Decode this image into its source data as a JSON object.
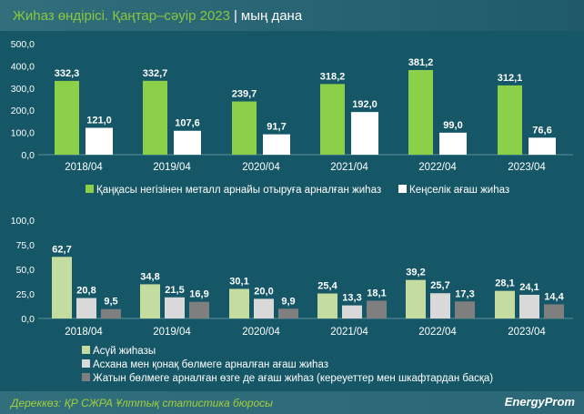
{
  "header": {
    "title": "Жиһаз өндірісі. Қаңтар–сәуір 2023",
    "separator": "|",
    "unit": "мың дана"
  },
  "footer": {
    "source": "Дереккөз: ҚР СЖРА Ұлттық статистика бюросы",
    "logo": "EnergyProm"
  },
  "colors": {
    "green": "#8cd04a",
    "white": "#ffffff",
    "lightgreen": "#c5dca0",
    "lightgray": "#d9d9d9",
    "gray": "#7f7f7f"
  },
  "chart_data": [
    {
      "type": "bar",
      "categories": [
        "2018/04",
        "2019/04",
        "2020/04",
        "2021/04",
        "2022/04",
        "2023/04"
      ],
      "ylim": [
        0,
        500
      ],
      "yticks": [
        "0,0",
        "100,0",
        "200,0",
        "300,0",
        "400,0",
        "500,0"
      ],
      "series": [
        {
          "name": "Қаңқасы негізінен металл арнайы отыруға арналған жиһаз",
          "values": [
            332.3,
            332.7,
            239.7,
            318.2,
            381.2,
            312.1
          ],
          "labels": [
            "332,3",
            "332,7",
            "239,7",
            "318,2",
            "381,2",
            "312,1"
          ]
        },
        {
          "name": "Кеңселік ағаш жиһаз",
          "values": [
            121.0,
            107.6,
            91.7,
            192.0,
            99.0,
            76.6
          ],
          "labels": [
            "121,0",
            "107,6",
            "91,7",
            "192,0",
            "99,0",
            "76,6"
          ]
        }
      ]
    },
    {
      "type": "bar",
      "categories": [
        "2018/04",
        "2019/04",
        "2020/04",
        "2021/04",
        "2022/04",
        "2023/04"
      ],
      "ylim": [
        0,
        100
      ],
      "yticks": [
        "0,0",
        "25,0",
        "50,0",
        "75,0",
        "100,0"
      ],
      "series": [
        {
          "name": "Асүй жиһазы",
          "values": [
            62.7,
            34.8,
            30.1,
            25.4,
            39.2,
            28.1
          ],
          "labels": [
            "62,7",
            "34,8",
            "30,1",
            "25,4",
            "39,2",
            "28,1"
          ]
        },
        {
          "name": "Асхана мен қонақ бөлмеге арналған ағаш жиһаз",
          "values": [
            20.8,
            21.5,
            20.0,
            13.3,
            25.7,
            24.1
          ],
          "labels": [
            "20,8",
            "21,5",
            "20,0",
            "13,3",
            "25,7",
            "24,1"
          ]
        },
        {
          "name": "Жатын бөлмеге арналған өзге де ағаш жиһаз (кереуеттер мен шкафтардан басқа)",
          "values": [
            9.5,
            16.9,
            9.9,
            18.1,
            17.3,
            14.4
          ],
          "labels": [
            "9,5",
            "16,9",
            "9,9",
            "18,1",
            "17,3",
            "14,4"
          ]
        }
      ]
    }
  ]
}
